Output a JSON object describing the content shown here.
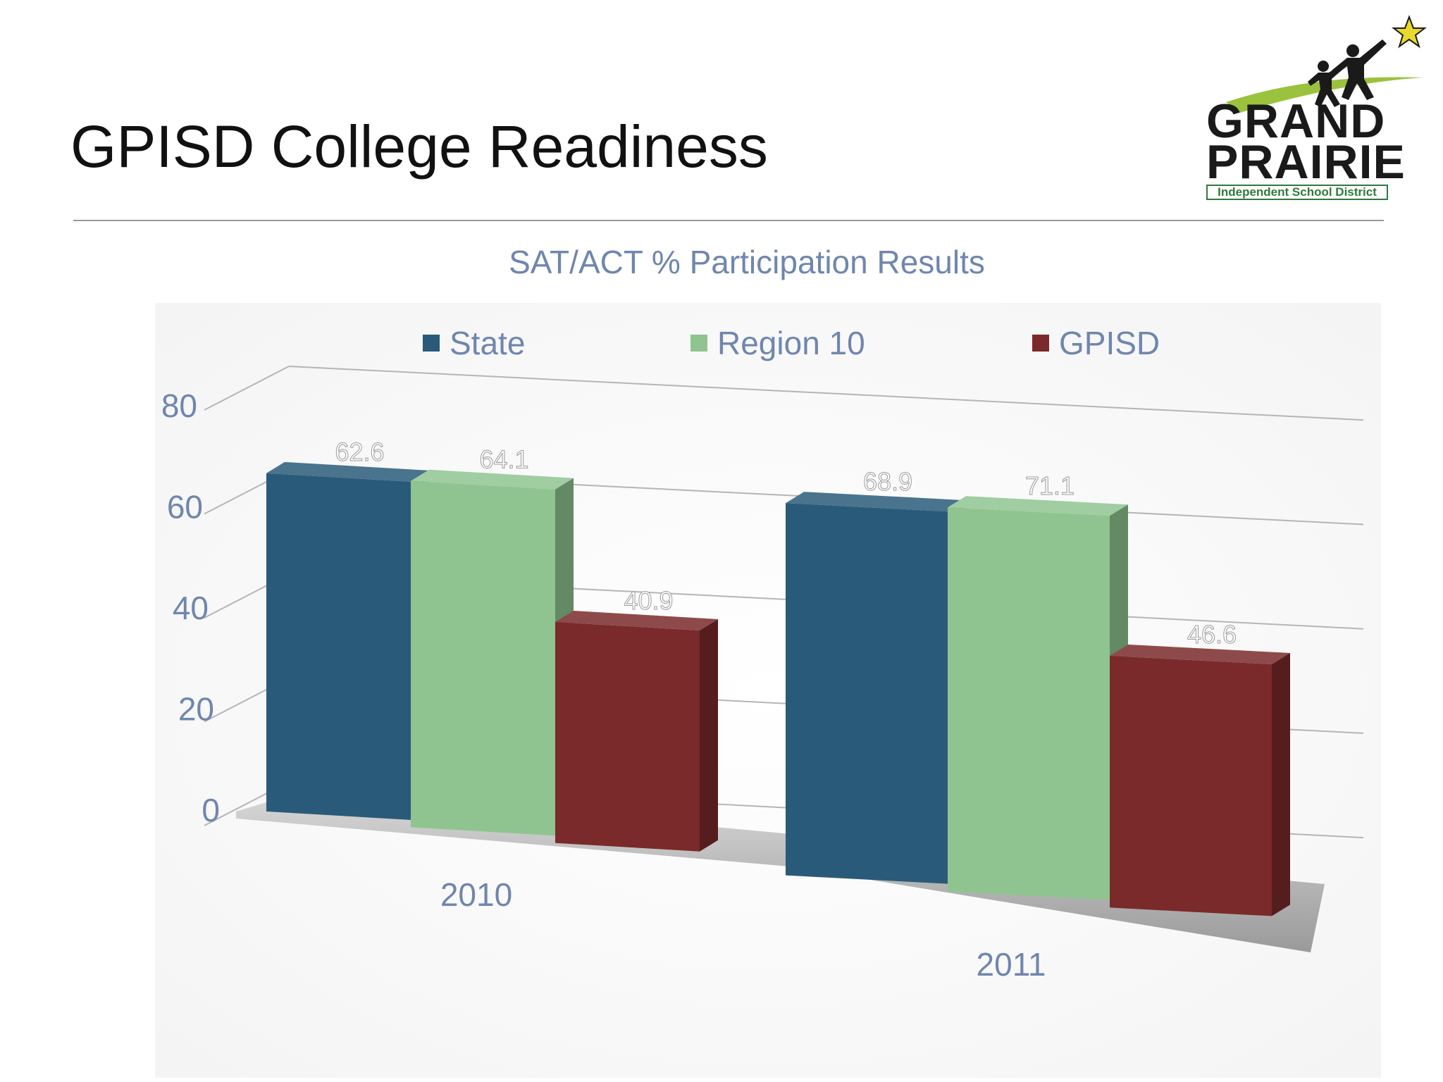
{
  "slide": {
    "title": "GPISD College Readiness"
  },
  "logo": {
    "line1": "GRAND",
    "line2": "PRAIRIE",
    "tagline": "Independent School District",
    "colors": {
      "text": "#1a1a1a",
      "green": "#2f7a3a",
      "swoosh": "#9ac23c",
      "star": "#e8d92a"
    }
  },
  "chart_data": {
    "type": "bar",
    "title": "SAT/ACT % Participation Results",
    "categories": [
      "2010",
      "2011"
    ],
    "series": [
      {
        "name": "State",
        "values": [
          62.6,
          68.9
        ],
        "color": "#2a5a7a"
      },
      {
        "name": "Region 10",
        "values": [
          64.1,
          71.1
        ],
        "color": "#8fc490"
      },
      {
        "name": "GPISD",
        "values": [
          40.9,
          46.6
        ],
        "color": "#7a2a2a"
      }
    ],
    "ylim": [
      0,
      80
    ],
    "yticks": [
      "0",
      "20",
      "40",
      "60",
      "80"
    ],
    "data_labels": [
      [
        "62.6",
        "68.9"
      ],
      [
        "64.1",
        "71.1"
      ],
      [
        "40.9",
        "46.6"
      ]
    ],
    "grid": true,
    "legend": "top",
    "style": "3d-clustered-column",
    "label_color": "#6f86ae"
  }
}
